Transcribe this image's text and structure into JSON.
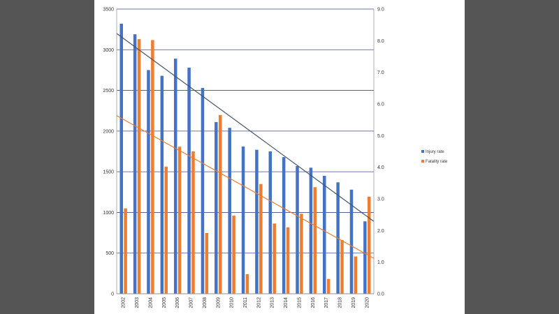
{
  "chart_data": {
    "type": "bar",
    "categories": [
      "2002",
      "2003",
      "2004",
      "2005",
      "2006",
      "2007",
      "2008",
      "2009",
      "2010",
      "2011",
      "2012",
      "2013",
      "2014",
      "2015",
      "2016",
      "2017",
      "2018",
      "2019",
      "2020"
    ],
    "series": [
      {
        "name": "Injury rate",
        "axis": "left",
        "color": "#4472C4",
        "values": [
          3320,
          3190,
          2750,
          2680,
          2890,
          2780,
          2530,
          2110,
          2040,
          1810,
          1770,
          1750,
          1680,
          1570,
          1550,
          1450,
          1370,
          1280,
          890
        ],
        "trendline": {
          "color": "#44546A",
          "values": [
            3200,
            890
          ]
        }
      },
      {
        "name": "Fatality rate",
        "axis": "right",
        "color": "#ED7D31",
        "values": [
          2.7,
          8.05,
          8.02,
          4.02,
          4.65,
          4.5,
          1.92,
          5.65,
          2.47,
          0.62,
          3.47,
          2.22,
          2.1,
          2.53,
          3.37,
          0.47,
          1.7,
          1.18,
          3.07
        ],
        "trendline": {
          "color": "#ED7D31",
          "values": [
            5.63,
            1.12
          ]
        }
      }
    ],
    "yleft": {
      "lim": [
        0,
        3500
      ],
      "ticks": [
        "0",
        "500",
        "1000",
        "1500",
        "2000",
        "2500",
        "3000",
        "3500"
      ]
    },
    "yright": {
      "lim": [
        0,
        9
      ],
      "ticks": [
        "0.0",
        "1.0",
        "2.0",
        "3.0",
        "4.0",
        "5.0",
        "6.0",
        "7.0",
        "8.0",
        "9.0"
      ]
    },
    "grid": true,
    "legend": "right"
  }
}
